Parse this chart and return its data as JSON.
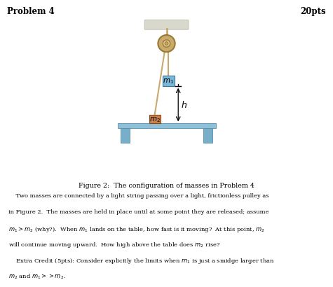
{
  "title_left": "Problem 4",
  "title_right": "20pts",
  "fig_caption": "Figure 2:  The configuration of masses in Problem 4",
  "body_lines": [
    "    Two masses are connected by a light string passing over a light, frictionless pulley as",
    "in Figure 2.  The masses are held in place until at some point they are released; assume",
    "$m_1 > m_2$ (why?).  When $m_1$ lands on the table, how fast is it moving?  At this point, $m_2$",
    "will continue moving upward.  How high above the table does $m_2$ rise?",
    "    Extra Credit (5pts): Consider explicitly the limits when $m_1$ is just a smidge larger than",
    "$m_2$ and $m_1 >> m_2$."
  ],
  "ceiling_color": "#d8d8cc",
  "string_color": "#c8a96e",
  "pulley_outer_color": "#c8a96e",
  "pulley_inner_color": "#e8d090",
  "pulley_edge_color": "#9a7a30",
  "m1_color": "#7ab8d8",
  "m1_edge_color": "#3a7098",
  "m2_color": "#c8804e",
  "m2_edge_color": "#8b4513",
  "table_top_color": "#90c0d8",
  "table_top_edge": "#5090b0",
  "table_leg_color": "#78aec8",
  "table_leg_edge": "#5090b0",
  "bg_color": "#ffffff"
}
